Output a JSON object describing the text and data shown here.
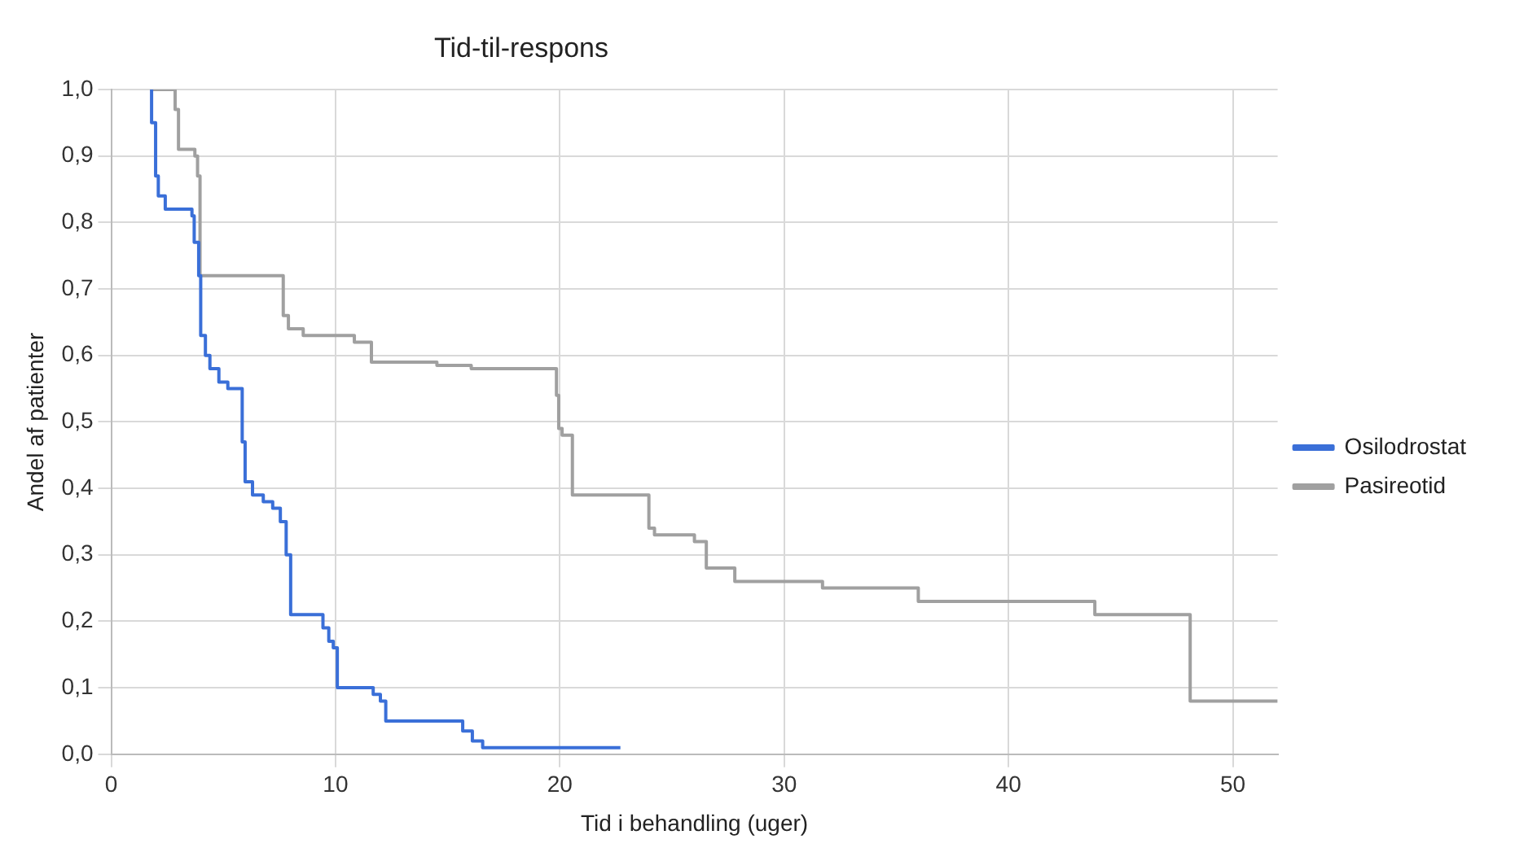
{
  "chart_data": {
    "type": "step",
    "title": "Tid-til-respons",
    "xlabel": "Tid i behandling (uger)",
    "ylabel": "Andel af patienter",
    "xlim": [
      0,
      52
    ],
    "xticks": [
      0,
      10,
      20,
      30,
      40,
      50
    ],
    "ylim": [
      0,
      1
    ],
    "yticks": [
      {
        "value": 0,
        "label": "0,0"
      },
      {
        "value": 0.1,
        "label": "0,1"
      },
      {
        "value": 0.2,
        "label": "0,2"
      },
      {
        "value": 0.3,
        "label": "0,3"
      },
      {
        "value": 0.4,
        "label": "0,4"
      },
      {
        "value": 0.5,
        "label": "0,5"
      },
      {
        "value": 0.6,
        "label": "0,6"
      },
      {
        "value": 0.7,
        "label": "0,7"
      },
      {
        "value": 0.8,
        "label": "0,8"
      },
      {
        "value": 0.9,
        "label": "0,9"
      },
      {
        "value": 1,
        "label": "1,0"
      }
    ],
    "grid": true,
    "legend": "right",
    "marker": "none",
    "line_style": "solid",
    "series": [
      {
        "name": "Osilodrostat",
        "color": "#3a6fd8",
        "x": [
          1.75,
          1.8,
          1.98,
          2.1,
          2.41,
          3.6,
          3.7,
          3.9,
          3.99,
          4.2,
          4.4,
          4.8,
          5.2,
          5.64,
          5.84,
          5.97,
          6.3,
          6.78,
          7.2,
          7.54,
          7.8,
          8.0,
          8.94,
          9.44,
          9.7,
          9.9,
          10.08,
          11.68,
          12.0,
          12.24,
          15.67,
          16.1,
          16.56,
          22.7
        ],
        "values": [
          1.0,
          0.95,
          0.87,
          0.84,
          0.82,
          0.81,
          0.77,
          0.72,
          0.63,
          0.6,
          0.58,
          0.56,
          0.55,
          0.55,
          0.47,
          0.41,
          0.39,
          0.38,
          0.37,
          0.35,
          0.3,
          0.21,
          0.21,
          0.19,
          0.17,
          0.16,
          0.1,
          0.09,
          0.08,
          0.05,
          0.035,
          0.02,
          0.01,
          0.01
        ]
      },
      {
        "name": "Pasireotid",
        "color": "#a0a0a0",
        "x": [
          1.75,
          2.85,
          3.0,
          3.73,
          3.85,
          3.96,
          7.67,
          7.9,
          8.56,
          10.84,
          11.6,
          12.75,
          14.52,
          16.05,
          19.85,
          19.95,
          20.1,
          20.56,
          23.97,
          24.22,
          26.0,
          26.53,
          27.8,
          31.71,
          34.2,
          35.98,
          43.85,
          48.1,
          52
        ],
        "values": [
          1.0,
          0.97,
          0.91,
          0.9,
          0.87,
          0.72,
          0.66,
          0.64,
          0.63,
          0.62,
          0.59,
          0.59,
          0.585,
          0.58,
          0.54,
          0.49,
          0.48,
          0.39,
          0.34,
          0.33,
          0.32,
          0.28,
          0.26,
          0.25,
          0.25,
          0.23,
          0.21,
          0.08,
          0.08
        ]
      }
    ]
  }
}
